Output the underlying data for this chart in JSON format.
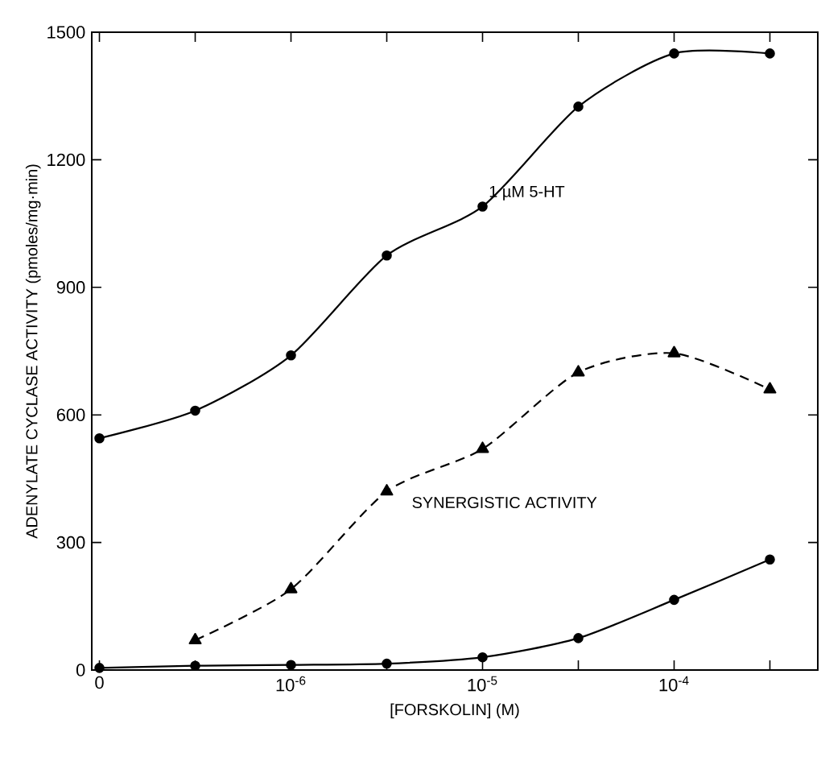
{
  "chart_data": {
    "type": "line",
    "xlabel": "[FORSKOLIN] (M)",
    "ylabel": "ADENYLATE CYCLASE ACTIVITY (pmoles/mg·min)",
    "categories": [
      "0",
      null,
      "10$^{-6}$",
      null,
      "10$^{-5}$",
      null,
      "10$^{-4}$",
      null
    ],
    "ylim": [
      0,
      1500
    ],
    "yticks": [
      0,
      300,
      600,
      900,
      1200,
      1500
    ],
    "grid": false,
    "series": [
      {
        "name": "1 µM 5-HT",
        "color": "#000000",
        "marker": "circle",
        "line_style": "solid",
        "values": [
          545,
          610,
          740,
          975,
          1090,
          1325,
          1450,
          1450
        ]
      },
      {
        "name": "SYNERGISTIC ACTIVITY",
        "color": "#000000",
        "marker": "triangle",
        "line_style": "dashed",
        "values": [
          null,
          70,
          190,
          420,
          520,
          700,
          745,
          660
        ]
      },
      {
        "color": "#000000",
        "marker": "circle",
        "line_style": "solid",
        "values": [
          5,
          10,
          12,
          15,
          30,
          75,
          165,
          260
        ]
      }
    ]
  }
}
